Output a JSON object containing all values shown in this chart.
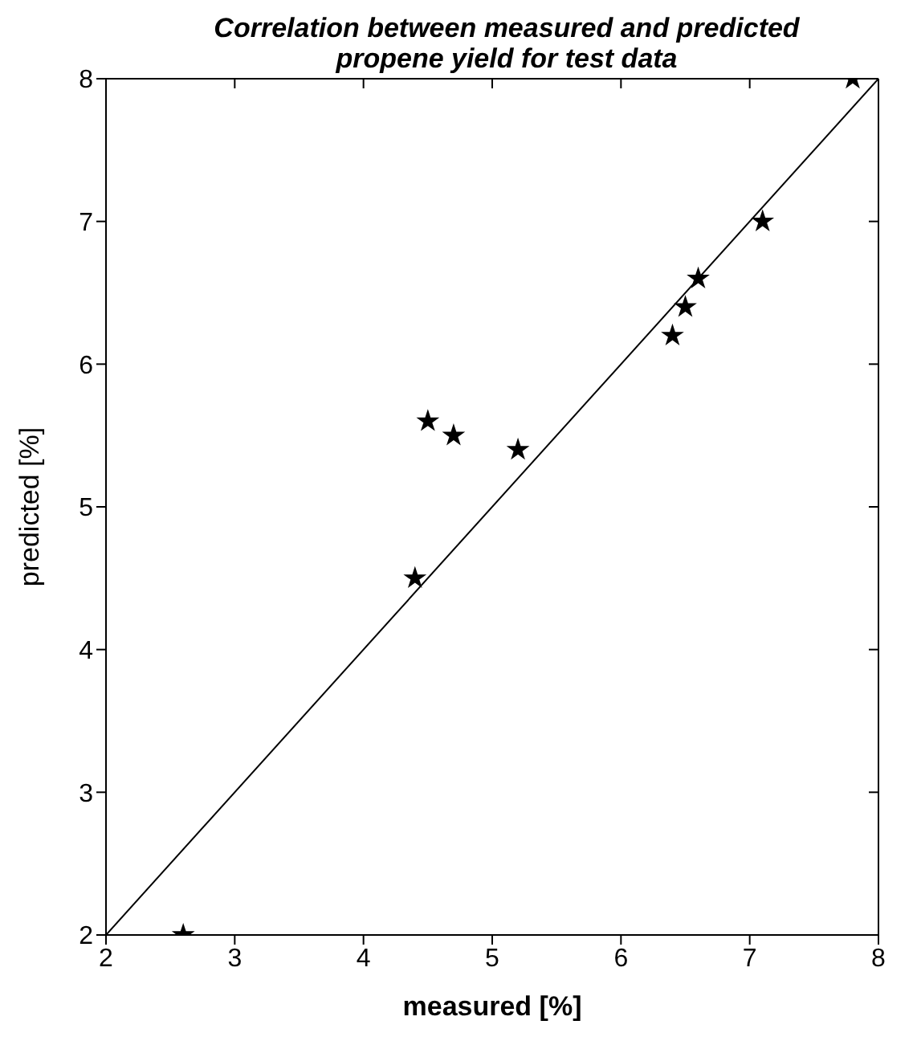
{
  "chart_data": {
    "type": "scatter",
    "title": "Correlation between measured and predicted\npropene yield for test data",
    "xlabel": "measured [%]",
    "ylabel": "predicted [%]",
    "xlim": [
      2,
      8
    ],
    "ylim": [
      2,
      8
    ],
    "xticks": [
      2,
      3,
      4,
      5,
      6,
      7,
      8
    ],
    "yticks": [
      2,
      3,
      4,
      5,
      6,
      7,
      8
    ],
    "marker": "star",
    "series": [
      {
        "color": "#000000",
        "x": [
          2.6,
          4.4,
          4.5,
          4.7,
          5.2,
          6.4,
          6.5,
          6.6,
          7.1,
          7.8
        ],
        "values": [
          2.0,
          4.5,
          5.6,
          5.5,
          5.4,
          6.2,
          6.4,
          6.6,
          7.0,
          8.0
        ]
      },
      {
        "type": "line",
        "color": "#000000",
        "marker": "none",
        "line_style": "solid",
        "x": [
          2,
          8
        ],
        "values": [
          2,
          8
        ]
      }
    ]
  }
}
